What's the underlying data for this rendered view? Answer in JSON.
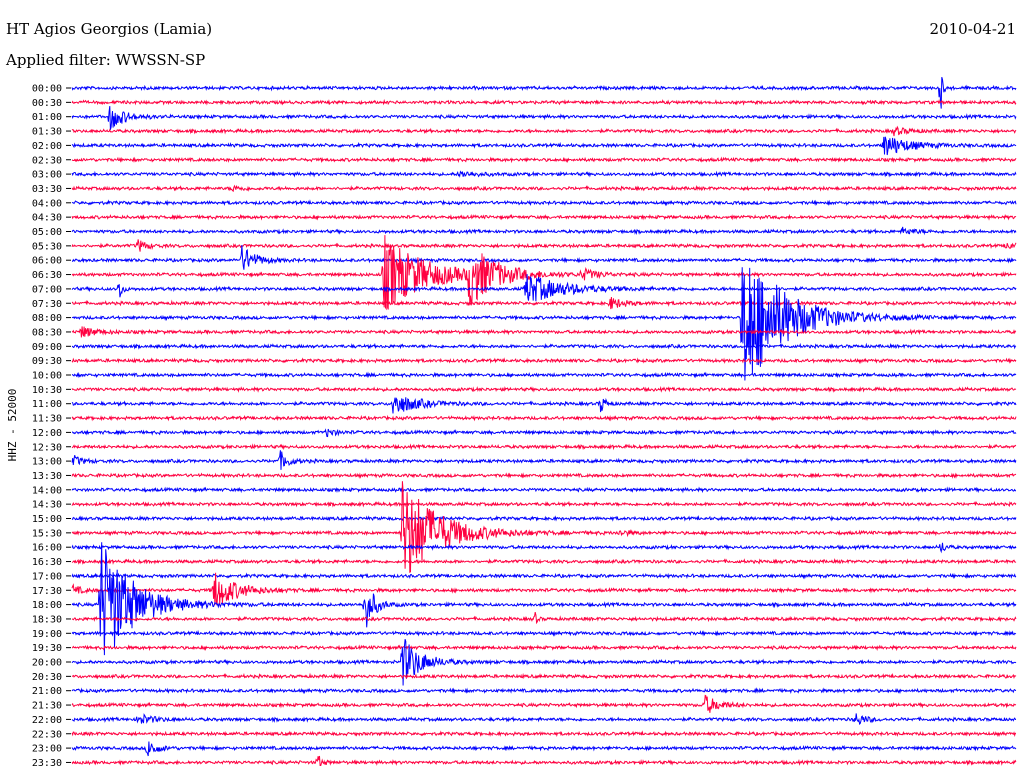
{
  "header": {
    "station": "HT Agios Georgios (Lamia)",
    "date": "2010-04-21",
    "filter": "Applied filter: WWSSN-SP"
  },
  "chart_data": {
    "type": "line",
    "title": "HT Agios Georgios (Lamia)",
    "subtitle": "Applied filter: WWSSN-SP",
    "ylabel": "HHZ - 52000",
    "colors": [
      "#0000ff",
      "#ff0040"
    ],
    "tick_labels": [
      "00:00",
      "00:30",
      "01:00",
      "01:30",
      "02:00",
      "02:30",
      "03:00",
      "03:30",
      "04:00",
      "04:30",
      "05:00",
      "05:30",
      "06:00",
      "06:30",
      "07:00",
      "07:30",
      "08:00",
      "08:30",
      "09:00",
      "09:30",
      "10:00",
      "10:30",
      "11:00",
      "11:30",
      "12:00",
      "12:30",
      "13:00",
      "13:30",
      "14:00",
      "14:30",
      "15:00",
      "15:30",
      "16:00",
      "16:30",
      "17:00",
      "17:30",
      "18:00",
      "18:30",
      "19:00",
      "19:30",
      "20:00",
      "20:30",
      "21:00",
      "21:30",
      "22:00",
      "22:30",
      "23:00",
      "23:30"
    ],
    "events": [
      {
        "row": "00:00",
        "t": 0.92,
        "amp": 30,
        "dur": 0.004
      },
      {
        "row": "01:00",
        "t": 0.04,
        "amp": 14,
        "dur": 0.03
      },
      {
        "row": "01:30",
        "t": 0.87,
        "amp": 4,
        "dur": 0.03
      },
      {
        "row": "02:00",
        "t": 0.86,
        "amp": 12,
        "dur": 0.05
      },
      {
        "row": "03:00",
        "t": 0.41,
        "amp": 3,
        "dur": 0.04
      },
      {
        "row": "03:30",
        "t": 0.17,
        "amp": 3,
        "dur": 0.02
      },
      {
        "row": "05:00",
        "t": 0.88,
        "amp": 3,
        "dur": 0.03
      },
      {
        "row": "05:30",
        "t": 0.07,
        "amp": 6,
        "dur": 0.02
      },
      {
        "row": "05:30",
        "t": 0.99,
        "amp": 5,
        "dur": 0.02
      },
      {
        "row": "06:00",
        "t": 0.18,
        "amp": 14,
        "dur": 0.03
      },
      {
        "row": "06:30",
        "t": 0.33,
        "amp": 40,
        "dur": 0.09
      },
      {
        "row": "06:30",
        "t": 0.42,
        "amp": 30,
        "dur": 0.06
      },
      {
        "row": "06:30",
        "t": 0.54,
        "amp": 6,
        "dur": 0.03
      },
      {
        "row": "07:00",
        "t": 0.05,
        "amp": 14,
        "dur": 0.006
      },
      {
        "row": "07:00",
        "t": 0.48,
        "amp": 16,
        "dur": 0.08
      },
      {
        "row": "07:30",
        "t": 0.57,
        "amp": 6,
        "dur": 0.03
      },
      {
        "row": "08:00",
        "t": 0.71,
        "amp": 80,
        "dur": 0.09
      },
      {
        "row": "08:30",
        "t": 0.01,
        "amp": 6,
        "dur": 0.03
      },
      {
        "row": "11:00",
        "t": 0.34,
        "amp": 12,
        "dur": 0.05
      },
      {
        "row": "11:00",
        "t": 0.56,
        "amp": 10,
        "dur": 0.01
      },
      {
        "row": "12:00",
        "t": 0.27,
        "amp": 4,
        "dur": 0.02
      },
      {
        "row": "13:00",
        "t": 0.0,
        "amp": 6,
        "dur": 0.02
      },
      {
        "row": "13:00",
        "t": 0.22,
        "amp": 10,
        "dur": 0.02
      },
      {
        "row": "15:30",
        "t": 0.35,
        "amp": 55,
        "dur": 0.08
      },
      {
        "row": "15:30",
        "t": 0.58,
        "amp": 3,
        "dur": 0.02
      },
      {
        "row": "16:00",
        "t": 0.92,
        "amp": 7,
        "dur": 0.01
      },
      {
        "row": "17:30",
        "t": 0.15,
        "amp": 20,
        "dur": 0.05
      },
      {
        "row": "17:30",
        "t": 0.0,
        "amp": 5,
        "dur": 0.02
      },
      {
        "row": "18:00",
        "t": 0.03,
        "amp": 70,
        "dur": 0.07
      },
      {
        "row": "18:00",
        "t": 0.31,
        "amp": 28,
        "dur": 0.02
      },
      {
        "row": "18:30",
        "t": 0.49,
        "amp": 8,
        "dur": 0.005
      },
      {
        "row": "20:00",
        "t": 0.35,
        "amp": 26,
        "dur": 0.04
      },
      {
        "row": "21:30",
        "t": 0.67,
        "amp": 10,
        "dur": 0.03
      },
      {
        "row": "22:00",
        "t": 0.07,
        "amp": 6,
        "dur": 0.03
      },
      {
        "row": "22:00",
        "t": 0.83,
        "amp": 7,
        "dur": 0.02
      },
      {
        "row": "23:00",
        "t": 0.08,
        "amp": 10,
        "dur": 0.02
      },
      {
        "row": "23:30",
        "t": 0.26,
        "amp": 8,
        "dur": 0.01
      }
    ]
  }
}
